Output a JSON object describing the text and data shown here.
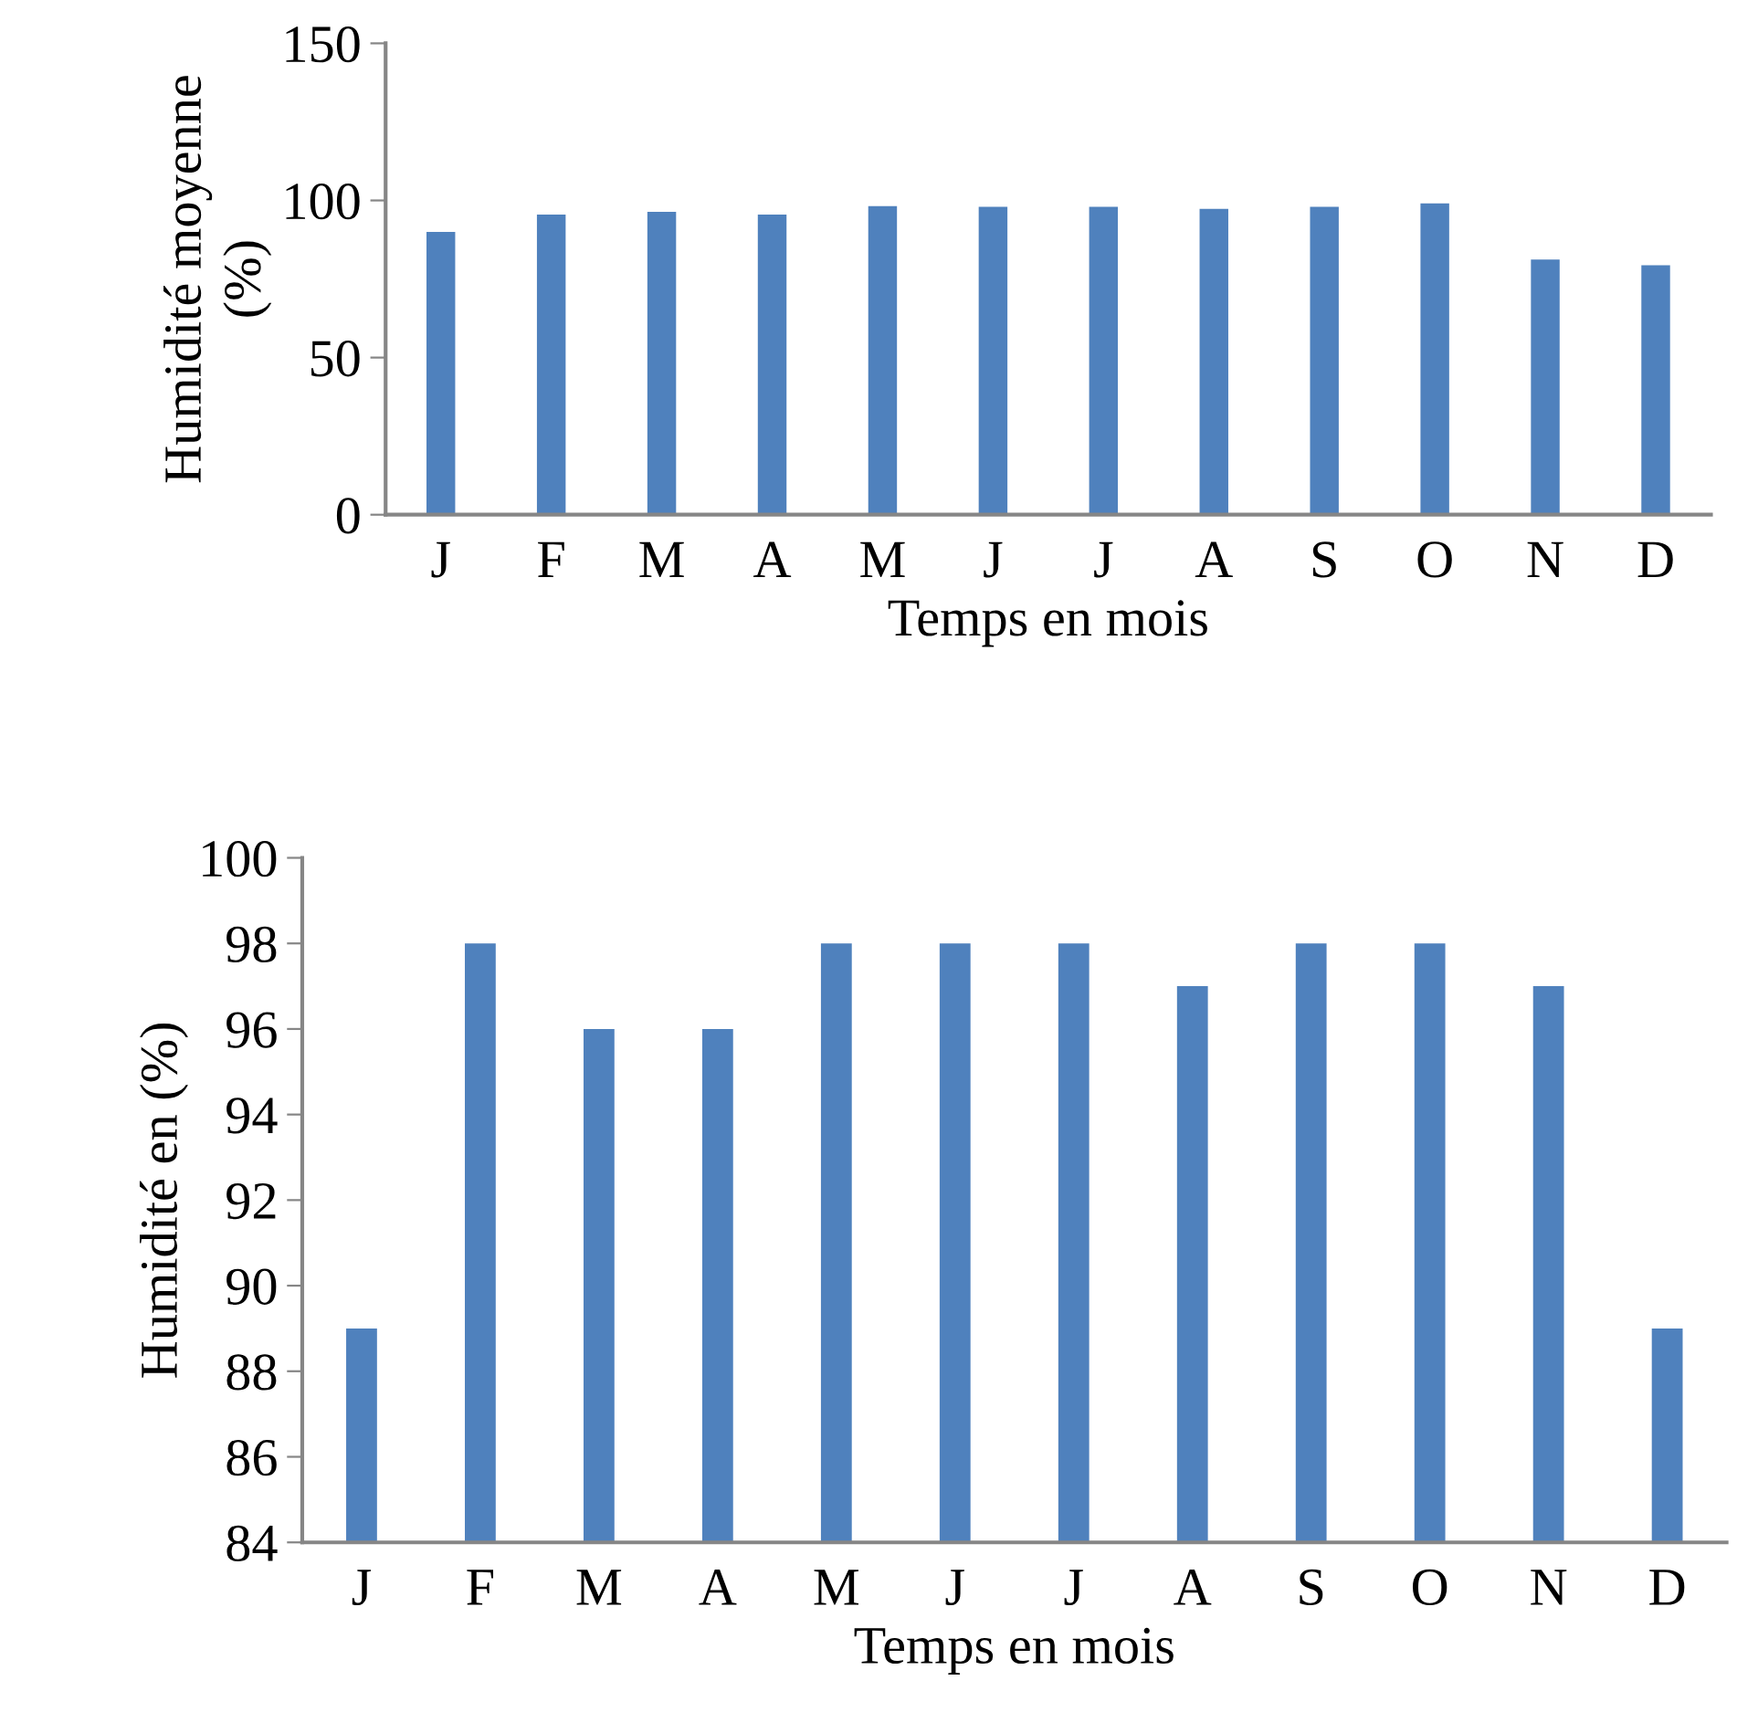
{
  "chart_data": [
    {
      "type": "bar",
      "xlabel": "Temps en mois",
      "ylabel": "Humidité moyenne (%)",
      "categories": [
        "J",
        "F",
        "M",
        "A",
        "M",
        "J",
        "J",
        "A",
        "S",
        "O",
        "N",
        "D"
      ],
      "series": [
        {
          "color": "#4f81bd",
          "values": [
            90,
            95.5,
            96.4,
            95.5,
            98.2,
            98,
            98,
            97.3,
            98,
            99.1,
            81.2,
            79.4
          ]
        }
      ],
      "ylim": [
        0,
        150
      ],
      "yticks": [
        0,
        50,
        100,
        150
      ]
    },
    {
      "type": "bar",
      "xlabel": "Temps en mois",
      "ylabel": "Humidité en (%)",
      "categories": [
        "J",
        "F",
        "M",
        "A",
        "M",
        "J",
        "J",
        "A",
        "S",
        "O",
        "N",
        "D"
      ],
      "series": [
        {
          "color": "#4f81bd",
          "values": [
            89,
            98,
            96,
            96,
            98,
            98,
            98,
            97,
            98,
            98,
            97,
            89
          ]
        }
      ],
      "ylim": [
        84,
        100
      ],
      "yticks": [
        84,
        86,
        88,
        90,
        92,
        94,
        96,
        98,
        100
      ]
    }
  ]
}
